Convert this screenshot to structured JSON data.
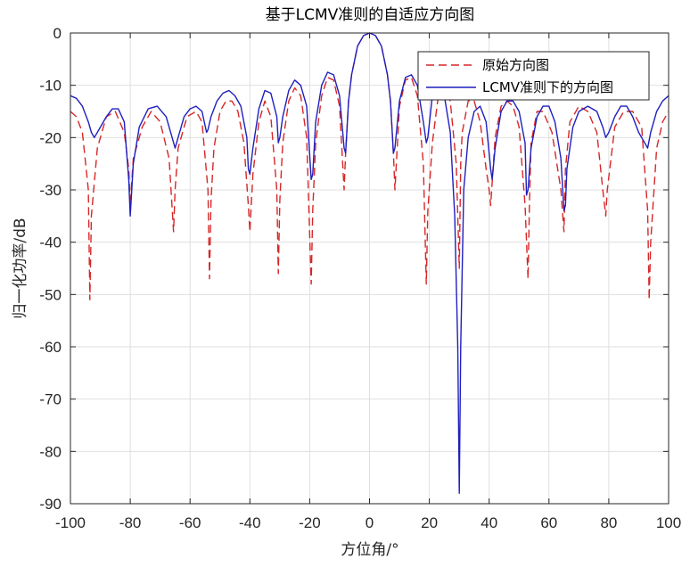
{
  "chart_data": {
    "type": "line",
    "title": "基于LCMV准则的自适应方向图",
    "xlabel": "方位角/°",
    "ylabel": "归一化功率/dB",
    "xlim": [
      -100,
      100
    ],
    "ylim": [
      -90,
      0
    ],
    "xticks": [
      -100,
      -80,
      -60,
      -40,
      -20,
      0,
      20,
      40,
      60,
      80,
      100
    ],
    "yticks": [
      0,
      -10,
      -20,
      -30,
      -40,
      -50,
      -60,
      -70,
      -80,
      -90
    ],
    "grid": true,
    "legend_position": "top-right",
    "series": [
      {
        "name": "原始方向图",
        "color": "#d62728",
        "dash": "dashed",
        "x": [
          -100,
          -98,
          -96,
          -94,
          -93.5,
          -93,
          -91,
          -88,
          -85,
          -82,
          -80.5,
          -80,
          -79,
          -76,
          -73,
          -70,
          -67,
          -65.5,
          -65,
          -64,
          -61,
          -58,
          -56,
          -54,
          -53.5,
          -53,
          -52,
          -50,
          -48,
          -46,
          -44,
          -42,
          -40.5,
          -40,
          -39,
          -37,
          -35,
          -33,
          -31,
          -30.5,
          -30,
          -29,
          -27,
          -25,
          -23,
          -21,
          -19.5,
          -19,
          -18,
          -16,
          -14,
          -12,
          -10,
          -8.5,
          -8,
          -7,
          -6,
          -4,
          -2,
          0,
          2,
          4,
          6,
          7,
          8,
          8.5,
          10,
          12,
          14,
          16,
          18,
          19,
          19.5,
          21,
          23,
          25,
          27,
          29,
          30,
          30.5,
          31,
          33,
          35,
          37,
          39,
          40,
          40.5,
          42,
          44,
          46,
          48,
          50,
          52,
          53,
          53.5,
          54,
          56,
          58,
          61,
          64,
          65,
          65.5,
          67,
          70,
          73,
          76,
          78,
          79,
          79.5,
          82,
          85,
          88,
          91,
          93,
          93.5,
          94,
          96,
          98,
          100
        ],
        "y": [
          -15,
          -16,
          -19,
          -30,
          -51,
          -35,
          -22,
          -16,
          -15,
          -19,
          -26,
          -33,
          -24,
          -18,
          -15,
          -17,
          -24,
          -38,
          -30,
          -22,
          -16,
          -15,
          -17,
          -30,
          -47,
          -32,
          -22,
          -15,
          -13,
          -13,
          -15,
          -21,
          -33,
          -38,
          -27,
          -17,
          -13,
          -16,
          -30,
          -46,
          -32,
          -21,
          -13,
          -10.5,
          -12,
          -20,
          -48,
          -34,
          -21,
          -12,
          -8.5,
          -9,
          -14,
          -30,
          -23,
          -13,
          -8,
          -2.5,
          -0.5,
          0,
          -0.5,
          -2.5,
          -8,
          -13,
          -23,
          -30,
          -14,
          -9,
          -8.5,
          -12,
          -25,
          -48,
          -34,
          -21,
          -12,
          -10.5,
          -13,
          -25,
          -45,
          -25,
          -19,
          -13,
          -13,
          -17,
          -26,
          -30,
          -33,
          -20,
          -14,
          -13,
          -14,
          -18,
          -33,
          -47,
          -32,
          -21,
          -15,
          -15,
          -19,
          -30,
          -38,
          -26,
          -17,
          -14,
          -15,
          -19,
          -30,
          -35,
          -30,
          -18,
          -15,
          -15,
          -18,
          -34,
          -51,
          -40,
          -22,
          -17,
          -15
        ]
      },
      {
        "name": "LCMV准则下的方向图",
        "color": "#1f1fbf",
        "dash": "solid",
        "x": [
          -100,
          -98,
          -96,
          -94,
          -93,
          -92,
          -90,
          -88,
          -86,
          -84,
          -82,
          -80.5,
          -80,
          -79,
          -77,
          -74,
          -71,
          -68,
          -66,
          -65,
          -64,
          -62,
          -60,
          -58,
          -56,
          -54.5,
          -54,
          -53,
          -51,
          -49,
          -47,
          -45,
          -43,
          -41,
          -40.5,
          -40,
          -39,
          -37,
          -35,
          -33,
          -31,
          -30.5,
          -30,
          -29,
          -27,
          -25,
          -23,
          -21,
          -19.5,
          -19,
          -18,
          -16,
          -14,
          -12,
          -10,
          -8.5,
          -8,
          -7,
          -6,
          -4,
          -2,
          0,
          2,
          4,
          6,
          7,
          8,
          8.5,
          10,
          12,
          14,
          16,
          18,
          19,
          19.5,
          21,
          23,
          25,
          27,
          28.5,
          29.5,
          30,
          30.5,
          31.5,
          33,
          35,
          37,
          39,
          40.5,
          41,
          42,
          44,
          46,
          48,
          50,
          52,
          52.5,
          53,
          54,
          56,
          58,
          60,
          62,
          64,
          65,
          65.5,
          66,
          68,
          70,
          73,
          76,
          78,
          79,
          80,
          82,
          84,
          86,
          88,
          90,
          92,
          93,
          94,
          96,
          98,
          100
        ],
        "y": [
          -12,
          -12.5,
          -14,
          -17,
          -19,
          -20,
          -18,
          -16,
          -14.5,
          -14.5,
          -17,
          -28,
          -35,
          -25,
          -18,
          -14.5,
          -14,
          -16,
          -20,
          -22,
          -20,
          -16,
          -14.5,
          -14,
          -15,
          -19,
          -18.5,
          -16,
          -13,
          -11.5,
          -11,
          -12,
          -14,
          -20,
          -26,
          -27,
          -22,
          -14.5,
          -11,
          -11.5,
          -16,
          -21,
          -20,
          -16,
          -11,
          -9,
          -10,
          -14,
          -28,
          -27,
          -17,
          -10,
          -7.5,
          -8,
          -12,
          -22,
          -23,
          -13,
          -8,
          -2.5,
          -0.5,
          0,
          -0.5,
          -2.5,
          -8,
          -13,
          -23,
          -22,
          -13,
          -8.5,
          -8,
          -10,
          -17,
          -21,
          -20,
          -12,
          -10,
          -12,
          -19,
          -35,
          -60,
          -88,
          -60,
          -30,
          -20,
          -15,
          -14,
          -17,
          -26,
          -28,
          -22,
          -15,
          -13,
          -13,
          -15,
          -21,
          -31,
          -30,
          -22,
          -16,
          -14,
          -14,
          -17,
          -24,
          -34,
          -33,
          -26,
          -18,
          -15,
          -14,
          -15,
          -18,
          -20,
          -19,
          -16,
          -14,
          -14,
          -16,
          -19,
          -21,
          -22,
          -19,
          -15,
          -13,
          -12
        ]
      }
    ]
  }
}
